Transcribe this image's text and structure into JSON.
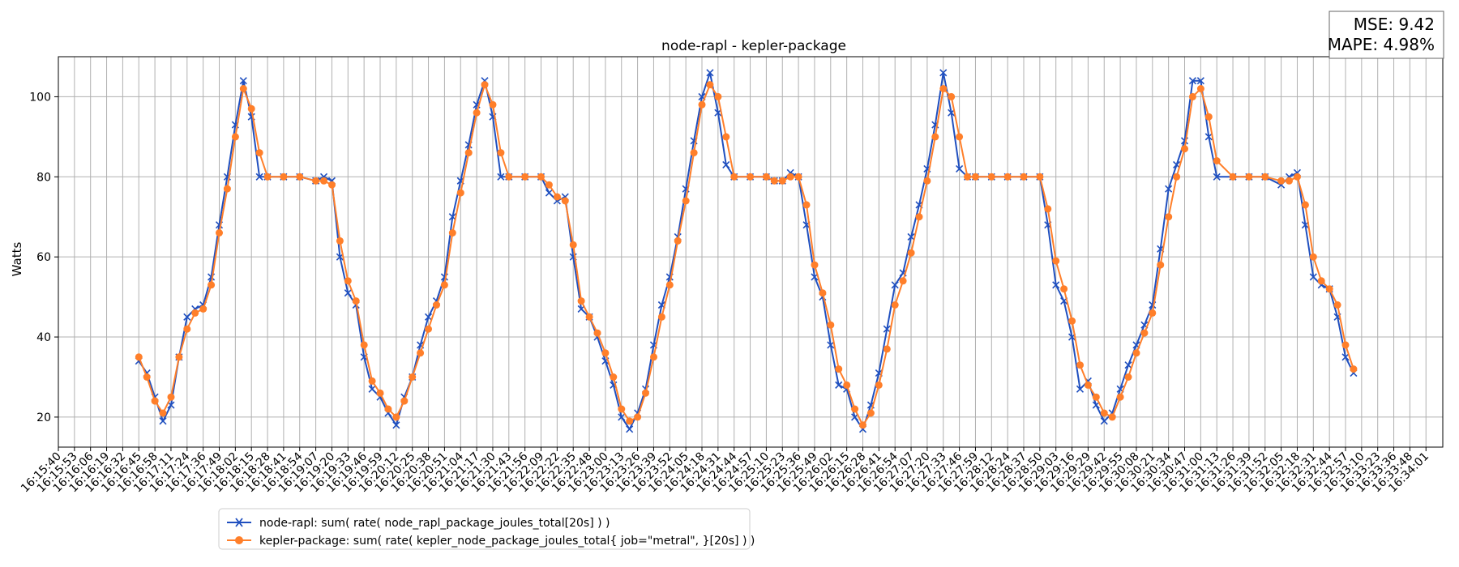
{
  "chart_data": {
    "type": "line",
    "title": "node-rapl - kepler-package",
    "xlabel": "",
    "ylabel": "Watts",
    "ylim": [
      12.5,
      110
    ],
    "yticks": [
      20,
      40,
      60,
      80,
      100
    ],
    "grid": true,
    "legend_placement": "bottom-left, below the axis",
    "x_ticks": [
      "16:15:40",
      "16:15:53",
      "16:16:06",
      "16:16:19",
      "16:16:32",
      "16:16:45",
      "16:16:58",
      "16:17:11",
      "16:17:24",
      "16:17:36",
      "16:17:49",
      "16:18:02",
      "16:18:15",
      "16:18:28",
      "16:18:41",
      "16:18:54",
      "16:19:07",
      "16:19:20",
      "16:19:33",
      "16:19:46",
      "16:19:59",
      "16:20:12",
      "16:20:25",
      "16:20:38",
      "16:20:51",
      "16:21:04",
      "16:21:17",
      "16:21:30",
      "16:21:43",
      "16:21:56",
      "16:22:09",
      "16:22:22",
      "16:22:35",
      "16:22:48",
      "16:23:00",
      "16:23:13",
      "16:23:26",
      "16:23:39",
      "16:23:52",
      "16:24:05",
      "16:24:18",
      "16:24:31",
      "16:24:44",
      "16:24:57",
      "16:25:10",
      "16:25:23",
      "16:25:36",
      "16:25:49",
      "16:26:02",
      "16:26:15",
      "16:26:28",
      "16:26:41",
      "16:26:54",
      "16:27:07",
      "16:27:20",
      "16:27:33",
      "16:27:46",
      "16:27:59",
      "16:28:12",
      "16:28:24",
      "16:28:37",
      "16:28:50",
      "16:29:03",
      "16:29:16",
      "16:29:29",
      "16:29:42",
      "16:29:55",
      "16:30:08",
      "16:30:21",
      "16:30:34",
      "16:30:47",
      "16:31:00",
      "16:31:13",
      "16:31:26",
      "16:31:39",
      "16:31:52",
      "16:32:05",
      "16:32:18",
      "16:32:31",
      "16:32:44",
      "16:32:57",
      "16:33:10",
      "16:33:23",
      "16:33:36",
      "16:33:48",
      "16:34:01"
    ],
    "series": [
      {
        "name": "node-rapl: sum( rate( node_rapl_package_joules_total[20s] ) )",
        "color": "#1f4fbf",
        "marker": "x",
        "points": [
          [
            5,
            34
          ],
          [
            5.5,
            31
          ],
          [
            6,
            25
          ],
          [
            6.5,
            19
          ],
          [
            7,
            23
          ],
          [
            7.5,
            35
          ],
          [
            8,
            45
          ],
          [
            8.5,
            47
          ],
          [
            9,
            48
          ],
          [
            9.5,
            55
          ],
          [
            10,
            68
          ],
          [
            10.5,
            80
          ],
          [
            11,
            93
          ],
          [
            11.5,
            104
          ],
          [
            12,
            95
          ],
          [
            12.5,
            80
          ],
          [
            13,
            80
          ],
          [
            14,
            80
          ],
          [
            15,
            80
          ],
          [
            16,
            79
          ],
          [
            16.5,
            80
          ],
          [
            17,
            79
          ],
          [
            17.5,
            60
          ],
          [
            18,
            51
          ],
          [
            18.5,
            48
          ],
          [
            19,
            35
          ],
          [
            19.5,
            27
          ],
          [
            20,
            25
          ],
          [
            20.5,
            21
          ],
          [
            21,
            18
          ],
          [
            21.5,
            25
          ],
          [
            22,
            30
          ],
          [
            22.5,
            38
          ],
          [
            23,
            45
          ],
          [
            23.5,
            49
          ],
          [
            24,
            55
          ],
          [
            24.5,
            70
          ],
          [
            25,
            79
          ],
          [
            25.5,
            88
          ],
          [
            26,
            98
          ],
          [
            26.5,
            104
          ],
          [
            27,
            95
          ],
          [
            27.5,
            80
          ],
          [
            28,
            80
          ],
          [
            29,
            80
          ],
          [
            30,
            80
          ],
          [
            30.5,
            76
          ],
          [
            31,
            74
          ],
          [
            31.5,
            75
          ],
          [
            32,
            60
          ],
          [
            32.5,
            47
          ],
          [
            33,
            45
          ],
          [
            33.5,
            40
          ],
          [
            34,
            34
          ],
          [
            34.5,
            28
          ],
          [
            35,
            20
          ],
          [
            35.5,
            17
          ],
          [
            36,
            21
          ],
          [
            36.5,
            27
          ],
          [
            37,
            38
          ],
          [
            37.5,
            48
          ],
          [
            38,
            55
          ],
          [
            38.5,
            65
          ],
          [
            39,
            77
          ],
          [
            39.5,
            89
          ],
          [
            40,
            100
          ],
          [
            40.5,
            106
          ],
          [
            41,
            96
          ],
          [
            41.5,
            83
          ],
          [
            42,
            80
          ],
          [
            43,
            80
          ],
          [
            44,
            80
          ],
          [
            44.5,
            79
          ],
          [
            45,
            79
          ],
          [
            45.5,
            81
          ],
          [
            46,
            80
          ],
          [
            46.5,
            68
          ],
          [
            47,
            55
          ],
          [
            47.5,
            50
          ],
          [
            48,
            38
          ],
          [
            48.5,
            28
          ],
          [
            49,
            27
          ],
          [
            49.5,
            20
          ],
          [
            50,
            17
          ],
          [
            50.5,
            23
          ],
          [
            51,
            31
          ],
          [
            51.5,
            42
          ],
          [
            52,
            53
          ],
          [
            52.5,
            56
          ],
          [
            53,
            65
          ],
          [
            53.5,
            73
          ],
          [
            54,
            82
          ],
          [
            54.5,
            93
          ],
          [
            55,
            106
          ],
          [
            55.5,
            96
          ],
          [
            56,
            82
          ],
          [
            56.5,
            80
          ],
          [
            57,
            80
          ],
          [
            58,
            80
          ],
          [
            59,
            80
          ],
          [
            60,
            80
          ],
          [
            61,
            80
          ],
          [
            61.5,
            68
          ],
          [
            62,
            53
          ],
          [
            62.5,
            49
          ],
          [
            63,
            40
          ],
          [
            63.5,
            27
          ],
          [
            64,
            29
          ],
          [
            64.5,
            23
          ],
          [
            65,
            19
          ],
          [
            65.5,
            21
          ],
          [
            66,
            27
          ],
          [
            66.5,
            33
          ],
          [
            67,
            38
          ],
          [
            67.5,
            43
          ],
          [
            68,
            48
          ],
          [
            68.5,
            62
          ],
          [
            69,
            77
          ],
          [
            69.5,
            83
          ],
          [
            70,
            89
          ],
          [
            70.5,
            104
          ],
          [
            71,
            104
          ],
          [
            71.5,
            90
          ],
          [
            72,
            80
          ],
          [
            73,
            80
          ],
          [
            74,
            80
          ],
          [
            75,
            80
          ],
          [
            76,
            78
          ],
          [
            76.5,
            80
          ],
          [
            77,
            81
          ],
          [
            77.5,
            68
          ],
          [
            78,
            55
          ],
          [
            78.5,
            53
          ],
          [
            79,
            52
          ],
          [
            79.5,
            45
          ],
          [
            80,
            35
          ],
          [
            80.5,
            31
          ]
        ]
      },
      {
        "name": "kepler-package: sum( rate( kepler_node_package_joules_total{ job=\"metral\", }[20s] ) )",
        "color": "#ff7f2a",
        "marker": "o",
        "points": [
          [
            5,
            35
          ],
          [
            5.5,
            30
          ],
          [
            6,
            24
          ],
          [
            6.5,
            21
          ],
          [
            7,
            25
          ],
          [
            7.5,
            35
          ],
          [
            8,
            42
          ],
          [
            8.5,
            46
          ],
          [
            9,
            47
          ],
          [
            9.5,
            53
          ],
          [
            10,
            66
          ],
          [
            10.5,
            77
          ],
          [
            11,
            90
          ],
          [
            11.5,
            102
          ],
          [
            12,
            97
          ],
          [
            12.5,
            86
          ],
          [
            13,
            80
          ],
          [
            14,
            80
          ],
          [
            15,
            80
          ],
          [
            16,
            79
          ],
          [
            16.5,
            79
          ],
          [
            17,
            78
          ],
          [
            17.5,
            64
          ],
          [
            18,
            54
          ],
          [
            18.5,
            49
          ],
          [
            19,
            38
          ],
          [
            19.5,
            29
          ],
          [
            20,
            26
          ],
          [
            20.5,
            22
          ],
          [
            21,
            20
          ],
          [
            21.5,
            24
          ],
          [
            22,
            30
          ],
          [
            22.5,
            36
          ],
          [
            23,
            42
          ],
          [
            23.5,
            48
          ],
          [
            24,
            53
          ],
          [
            24.5,
            66
          ],
          [
            25,
            76
          ],
          [
            25.5,
            86
          ],
          [
            26,
            96
          ],
          [
            26.5,
            103
          ],
          [
            27,
            98
          ],
          [
            27.5,
            86
          ],
          [
            28,
            80
          ],
          [
            29,
            80
          ],
          [
            30,
            80
          ],
          [
            30.5,
            78
          ],
          [
            31,
            75
          ],
          [
            31.5,
            74
          ],
          [
            32,
            63
          ],
          [
            32.5,
            49
          ],
          [
            33,
            45
          ],
          [
            33.5,
            41
          ],
          [
            34,
            36
          ],
          [
            34.5,
            30
          ],
          [
            35,
            22
          ],
          [
            35.5,
            19
          ],
          [
            36,
            20
          ],
          [
            36.5,
            26
          ],
          [
            37,
            35
          ],
          [
            37.5,
            45
          ],
          [
            38,
            53
          ],
          [
            38.5,
            64
          ],
          [
            39,
            74
          ],
          [
            39.5,
            86
          ],
          [
            40,
            98
          ],
          [
            40.5,
            103
          ],
          [
            41,
            100
          ],
          [
            41.5,
            90
          ],
          [
            42,
            80
          ],
          [
            43,
            80
          ],
          [
            44,
            80
          ],
          [
            44.5,
            79
          ],
          [
            45,
            79
          ],
          [
            45.5,
            80
          ],
          [
            46,
            80
          ],
          [
            46.5,
            73
          ],
          [
            47,
            58
          ],
          [
            47.5,
            51
          ],
          [
            48,
            43
          ],
          [
            48.5,
            32
          ],
          [
            49,
            28
          ],
          [
            49.5,
            22
          ],
          [
            50,
            18
          ],
          [
            50.5,
            21
          ],
          [
            51,
            28
          ],
          [
            51.5,
            37
          ],
          [
            52,
            48
          ],
          [
            52.5,
            54
          ],
          [
            53,
            61
          ],
          [
            53.5,
            70
          ],
          [
            54,
            79
          ],
          [
            54.5,
            90
          ],
          [
            55,
            102
          ],
          [
            55.5,
            100
          ],
          [
            56,
            90
          ],
          [
            56.5,
            80
          ],
          [
            57,
            80
          ],
          [
            58,
            80
          ],
          [
            59,
            80
          ],
          [
            60,
            80
          ],
          [
            61,
            80
          ],
          [
            61.5,
            72
          ],
          [
            62,
            59
          ],
          [
            62.5,
            52
          ],
          [
            63,
            44
          ],
          [
            63.5,
            33
          ],
          [
            64,
            28
          ],
          [
            64.5,
            25
          ],
          [
            65,
            21
          ],
          [
            65.5,
            20
          ],
          [
            66,
            25
          ],
          [
            66.5,
            30
          ],
          [
            67,
            36
          ],
          [
            67.5,
            41
          ],
          [
            68,
            46
          ],
          [
            68.5,
            58
          ],
          [
            69,
            70
          ],
          [
            69.5,
            80
          ],
          [
            70,
            87
          ],
          [
            70.5,
            100
          ],
          [
            71,
            102
          ],
          [
            71.5,
            95
          ],
          [
            72,
            84
          ],
          [
            73,
            80
          ],
          [
            74,
            80
          ],
          [
            75,
            80
          ],
          [
            76,
            79
          ],
          [
            76.5,
            79
          ],
          [
            77,
            80
          ],
          [
            77.5,
            73
          ],
          [
            78,
            60
          ],
          [
            78.5,
            54
          ],
          [
            79,
            52
          ],
          [
            79.5,
            48
          ],
          [
            80,
            38
          ],
          [
            80.5,
            32
          ]
        ]
      }
    ],
    "annotations": [
      "MSE: 9.42",
      "MAPE: 4.98%"
    ]
  }
}
